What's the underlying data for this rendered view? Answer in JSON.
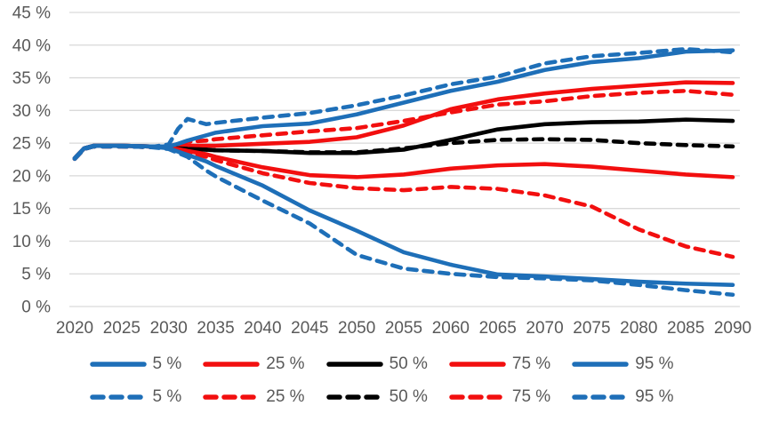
{
  "colors": {
    "blue": "#1e6fb8",
    "red": "#f20f0f",
    "black": "#000000",
    "axis_text": "#595959",
    "gridline": "#d9d9d9"
  },
  "chart_data": {
    "type": "line",
    "title": "",
    "xlabel": "",
    "ylabel": "",
    "ylim": [
      0,
      45
    ],
    "ytick_step": 5,
    "ytick_suffix": " %",
    "grid": true,
    "legend_position": "bottom",
    "xticks": [
      2020,
      2025,
      2030,
      2035,
      2040,
      2045,
      2050,
      2055,
      2060,
      2065,
      2070,
      2075,
      2080,
      2085,
      2090
    ],
    "x": [
      2020,
      2021,
      2022,
      2025,
      2028,
      2030,
      2031,
      2032,
      2034,
      2035,
      2040,
      2045,
      2050,
      2055,
      2060,
      2065,
      2070,
      2075,
      2080,
      2085,
      2090
    ],
    "series": [
      {
        "name": "75 %",
        "style": "solid",
        "color": "#f20f0f",
        "values": [
          22.7,
          24.2,
          24.6,
          24.6,
          24.5,
          24.4,
          24.5,
          24.6,
          24.6,
          24.6,
          24.9,
          25.2,
          25.9,
          27.7,
          30.2,
          31.7,
          32.6,
          33.3,
          33.8,
          34.3,
          34.2
        ]
      },
      {
        "name": "75 %",
        "style": "dashed",
        "color": "#f20f0f",
        "values": [
          22.6,
          24.1,
          24.5,
          24.5,
          24.4,
          24.5,
          24.9,
          25.2,
          25.4,
          25.6,
          26.2,
          26.8,
          27.3,
          28.4,
          29.7,
          30.9,
          31.4,
          32.2,
          32.7,
          33.0,
          32.4
        ]
      },
      {
        "name": "50 %",
        "style": "solid",
        "color": "#000000",
        "values": [
          22.7,
          24.2,
          24.6,
          24.6,
          24.5,
          24.3,
          24.2,
          24.1,
          24.0,
          23.9,
          23.8,
          23.5,
          23.5,
          24.0,
          25.5,
          27.1,
          27.9,
          28.2,
          28.3,
          28.6,
          28.4
        ]
      },
      {
        "name": "50 %",
        "style": "dashed",
        "color": "#000000",
        "values": [
          22.6,
          24.1,
          24.5,
          24.5,
          24.4,
          24.3,
          24.2,
          24.1,
          24.0,
          23.9,
          23.8,
          23.6,
          23.6,
          24.2,
          25.0,
          25.5,
          25.6,
          25.5,
          25.0,
          24.7,
          24.5
        ]
      },
      {
        "name": "25 %",
        "style": "solid",
        "color": "#f20f0f",
        "values": [
          22.7,
          24.2,
          24.6,
          24.6,
          24.5,
          24.3,
          24.1,
          23.8,
          23.3,
          22.9,
          21.3,
          20.1,
          19.8,
          20.2,
          21.1,
          21.6,
          21.8,
          21.4,
          20.8,
          20.2,
          19.8
        ]
      },
      {
        "name": "25 %",
        "style": "dashed",
        "color": "#f20f0f",
        "values": [
          22.6,
          24.1,
          24.5,
          24.5,
          24.4,
          24.3,
          24.0,
          23.6,
          22.9,
          22.4,
          20.4,
          18.9,
          18.1,
          17.8,
          18.3,
          18.0,
          17.0,
          15.3,
          11.8,
          9.2,
          7.6
        ]
      },
      {
        "name": "95 %",
        "style": "solid",
        "color": "#1e6fb8",
        "values": [
          22.7,
          24.2,
          24.6,
          24.6,
          24.5,
          24.5,
          24.9,
          25.4,
          26.2,
          26.6,
          27.6,
          28.0,
          29.4,
          31.2,
          33.0,
          34.4,
          36.2,
          37.4,
          38.0,
          39.0,
          39.2
        ]
      },
      {
        "name": "95 %",
        "style": "dashed",
        "color": "#1e6fb8",
        "values": [
          22.6,
          24.1,
          24.5,
          24.5,
          24.4,
          24.8,
          27.2,
          28.7,
          27.9,
          28.1,
          28.9,
          29.6,
          30.8,
          32.3,
          34.0,
          35.2,
          37.2,
          38.3,
          38.8,
          39.4,
          38.9
        ]
      },
      {
        "name": "5 %",
        "style": "solid",
        "color": "#1e6fb8",
        "values": [
          22.7,
          24.2,
          24.6,
          24.6,
          24.5,
          24.2,
          23.7,
          23.2,
          22.2,
          21.5,
          18.5,
          14.7,
          11.6,
          8.3,
          6.4,
          4.9,
          4.6,
          4.2,
          3.8,
          3.5,
          3.3
        ]
      },
      {
        "name": "5 %",
        "style": "dashed",
        "color": "#1e6fb8",
        "values": [
          22.6,
          24.1,
          24.5,
          24.5,
          24.4,
          24.1,
          23.5,
          22.9,
          20.8,
          19.9,
          16.2,
          12.7,
          7.9,
          5.8,
          5.0,
          4.5,
          4.3,
          4.0,
          3.3,
          2.5,
          1.8
        ]
      }
    ],
    "legend": {
      "rows": [
        {
          "style": "solid",
          "items": [
            {
              "label": "5 %",
              "color": "#1e6fb8"
            },
            {
              "label": "25 %",
              "color": "#f20f0f"
            },
            {
              "label": "50 %",
              "color": "#000000"
            },
            {
              "label": "75 %",
              "color": "#f20f0f"
            },
            {
              "label": "95 %",
              "color": "#1e6fb8"
            }
          ]
        },
        {
          "style": "dashed",
          "items": [
            {
              "label": "5 %",
              "color": "#1e6fb8"
            },
            {
              "label": "25 %",
              "color": "#f20f0f"
            },
            {
              "label": "50 %",
              "color": "#000000"
            },
            {
              "label": "75 %",
              "color": "#f20f0f"
            },
            {
              "label": "95 %",
              "color": "#1e6fb8"
            }
          ]
        }
      ]
    }
  }
}
